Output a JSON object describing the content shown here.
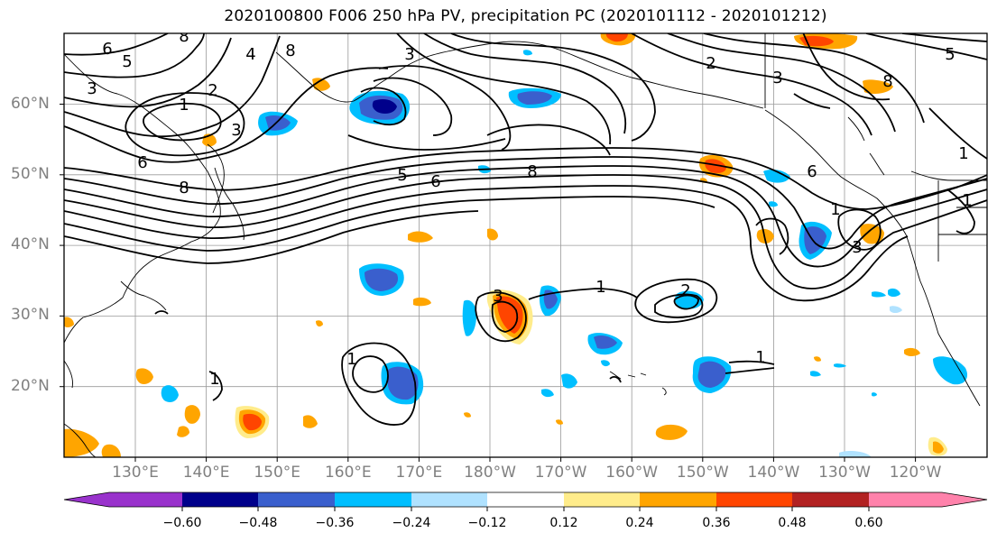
{
  "title": "2020100800 F006 250 hPa PV, precipitation PC (2020101112 - 2020101212)",
  "map": {
    "lat_labels": [
      "60°N",
      "50°N",
      "40°N",
      "30°N",
      "20°N"
    ],
    "lon_labels": [
      "130°E",
      "140°E",
      "150°E",
      "160°E",
      "170°E",
      "180°W",
      "170°W",
      "160°W",
      "150°W",
      "140°W",
      "130°W",
      "120°W"
    ],
    "lat_values": [
      60,
      50,
      40,
      30,
      20
    ],
    "lon_values": [
      130,
      140,
      150,
      160,
      170,
      180,
      -170,
      -160,
      -150,
      -140,
      -130,
      -120
    ],
    "contour_labels": [
      "6",
      "5",
      "3",
      "2",
      "1",
      "3",
      "6",
      "8",
      "4",
      "3",
      "8",
      "5",
      "6",
      "8",
      "2",
      "6",
      "5",
      "8",
      "1",
      "3",
      "1",
      "1",
      "3",
      "2",
      "1",
      "1",
      "1",
      "1",
      "3",
      "8"
    ]
  },
  "colorbar": {
    "colors": [
      "#9932cc",
      "#00008b",
      "#3a5fcd",
      "#00bfff",
      "#b0e2ff",
      "#ffffff",
      "#ffec8b",
      "#ffa500",
      "#ff4500",
      "#b22222",
      "#ff82ab"
    ],
    "tick_labels": [
      "−0.60",
      "−0.48",
      "−0.36",
      "−0.24",
      "−0.12",
      "0.12",
      "0.24",
      "0.36",
      "0.48",
      "0.60"
    ],
    "tick_values": [
      -0.6,
      -0.48,
      -0.36,
      -0.24,
      -0.12,
      0.12,
      0.24,
      0.36,
      0.48,
      0.6
    ]
  }
}
